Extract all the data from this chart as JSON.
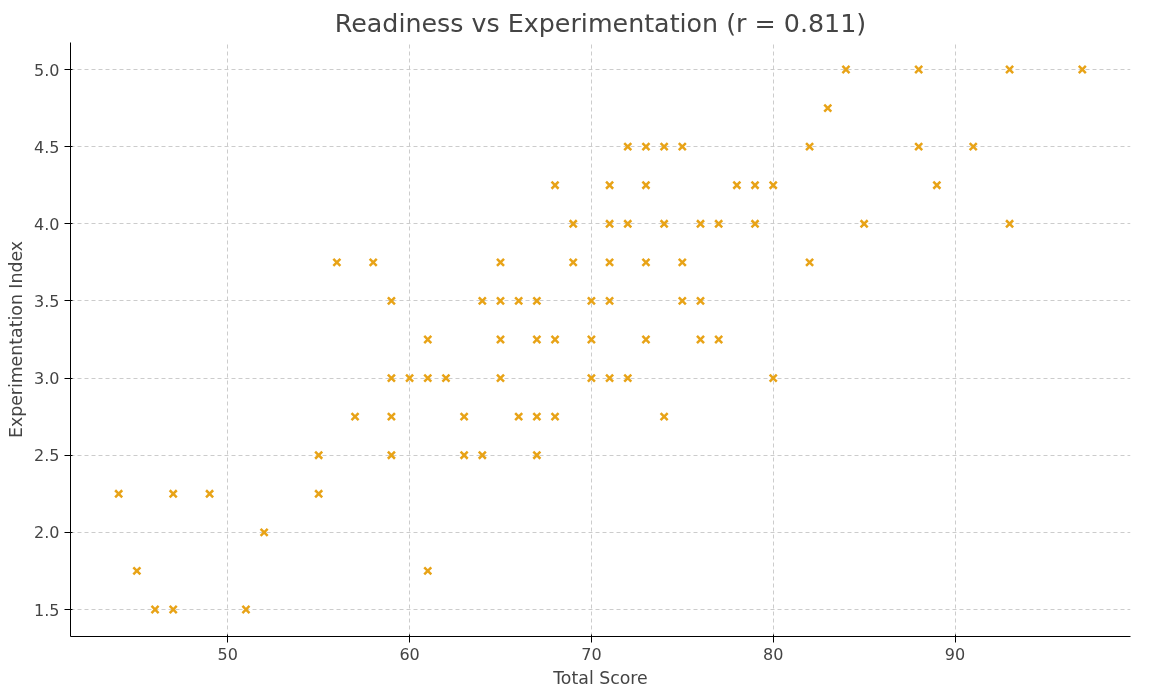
{
  "chart_data": {
    "type": "scatter",
    "title": "Readiness vs Experimentation (r = 0.811)",
    "xlabel": "Total Score",
    "ylabel": "Experimentation Index",
    "x": [
      84,
      88,
      93,
      97,
      83,
      72,
      73,
      74,
      75,
      82,
      88,
      91,
      68,
      71,
      73,
      78,
      79,
      80,
      89,
      69,
      71,
      72,
      74,
      76,
      77,
      79,
      85,
      93,
      56,
      58,
      65,
      69,
      71,
      73,
      75,
      82,
      59,
      64,
      65,
      66,
      67,
      70,
      71,
      75,
      76,
      61,
      65,
      67,
      68,
      70,
      73,
      76,
      77,
      59,
      60,
      61,
      62,
      65,
      70,
      71,
      72,
      80,
      57,
      59,
      63,
      66,
      67,
      68,
      74,
      55,
      59,
      63,
      64,
      67,
      44,
      47,
      49,
      55,
      52,
      45,
      61,
      46,
      47,
      51
    ],
    "values": [
      5.0,
      5.0,
      5.0,
      5.0,
      4.75,
      4.5,
      4.5,
      4.5,
      4.5,
      4.5,
      4.5,
      4.5,
      4.25,
      4.25,
      4.25,
      4.25,
      4.25,
      4.25,
      4.25,
      4.0,
      4.0,
      4.0,
      4.0,
      4.0,
      4.0,
      4.0,
      4.0,
      4.0,
      3.75,
      3.75,
      3.75,
      3.75,
      3.75,
      3.75,
      3.75,
      3.75,
      3.5,
      3.5,
      3.5,
      3.5,
      3.5,
      3.5,
      3.5,
      3.5,
      3.5,
      3.25,
      3.25,
      3.25,
      3.25,
      3.25,
      3.25,
      3.25,
      3.25,
      3.0,
      3.0,
      3.0,
      3.0,
      3.0,
      3.0,
      3.0,
      3.0,
      3.0,
      2.75,
      2.75,
      2.75,
      2.75,
      2.75,
      2.75,
      2.75,
      2.5,
      2.5,
      2.5,
      2.5,
      2.5,
      2.25,
      2.25,
      2.25,
      2.25,
      2.0,
      1.75,
      1.75,
      1.5,
      1.5,
      1.5
    ],
    "color": "#e8a317",
    "marker": "cross",
    "grid": true,
    "xlim": [
      41.35,
      99.65
    ],
    "xticks": [
      50,
      60,
      70,
      80,
      90
    ],
    "ylim": [
      1.325,
      5.175
    ],
    "yticks": [
      {
        "value": 1.5,
        "label": "1.5"
      },
      {
        "value": 2.0,
        "label": "2.0"
      },
      {
        "value": 2.5,
        "label": "2.5"
      },
      {
        "value": 3.0,
        "label": "3.0"
      },
      {
        "value": 3.5,
        "label": "3.5"
      },
      {
        "value": 4.0,
        "label": "4.0"
      },
      {
        "value": 4.5,
        "label": "4.5"
      },
      {
        "value": 5.0,
        "label": "5.0"
      }
    ]
  }
}
